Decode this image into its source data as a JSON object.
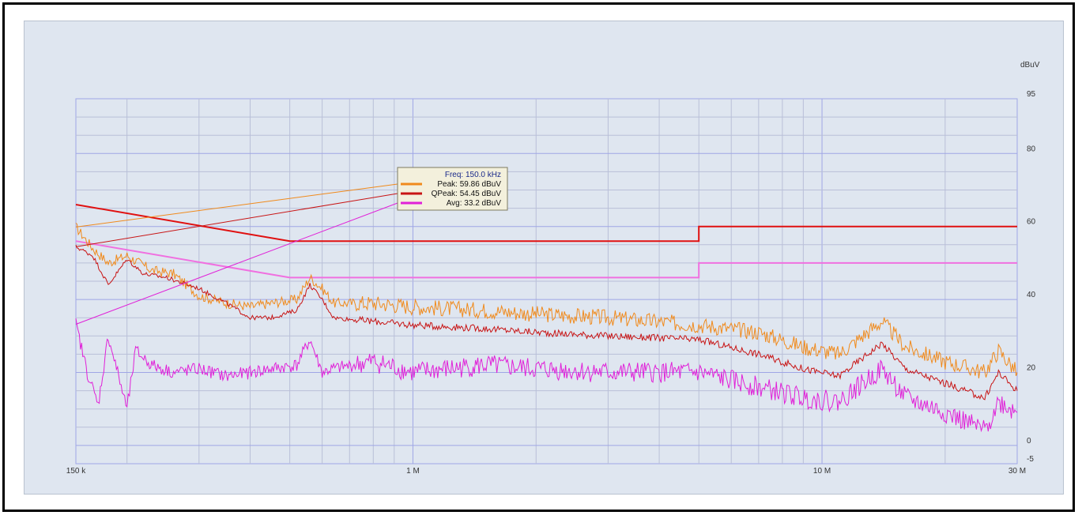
{
  "colors": {
    "background": "#dfe6f0",
    "grid": "#9fa6e6",
    "gridMinor": "#b9bfd8",
    "peak": "#f08a1c",
    "qpeak": "#c81414",
    "avg": "#e020d8",
    "limitQP": "#e01010",
    "limitAvg": "#f070e0"
  },
  "chart_data": {
    "type": "line",
    "xscale": "log",
    "xlim": [
      150000,
      30000000
    ],
    "ylim": [
      -5,
      95
    ],
    "yunit_label": "dBuV",
    "x_ticks": [
      {
        "value": 150000,
        "label": "150 k"
      },
      {
        "value": 1000000,
        "label": "1 M"
      },
      {
        "value": 10000000,
        "label": "10 M"
      },
      {
        "value": 30000000,
        "label": "30 M"
      }
    ],
    "y_ticks": [
      {
        "value": 95,
        "label": "95"
      },
      {
        "value": 80,
        "label": "80"
      },
      {
        "value": 60,
        "label": "60"
      },
      {
        "value": 40,
        "label": "40"
      },
      {
        "value": 20,
        "label": "20"
      },
      {
        "value": 0,
        "label": "0"
      },
      {
        "value": -5,
        "label": "-5"
      }
    ],
    "grid": true,
    "limits": [
      {
        "id": "qp_limit",
        "points": [
          [
            150000,
            66
          ],
          [
            500000,
            56
          ],
          [
            5000000,
            56
          ],
          [
            5000000,
            60
          ],
          [
            30000000,
            60
          ]
        ]
      },
      {
        "id": "avg_limit",
        "points": [
          [
            150000,
            56
          ],
          [
            500000,
            46
          ],
          [
            5000000,
            46
          ],
          [
            5000000,
            50
          ],
          [
            30000000,
            50
          ]
        ]
      }
    ],
    "series": [
      {
        "id": "peak",
        "name": "Peak",
        "points": [
          [
            150000,
            59.86
          ],
          [
            165000,
            54
          ],
          [
            180000,
            50
          ],
          [
            200000,
            52
          ],
          [
            230000,
            48
          ],
          [
            260000,
            47
          ],
          [
            300000,
            41
          ],
          [
            350000,
            39
          ],
          [
            400000,
            38
          ],
          [
            450000,
            39
          ],
          [
            520000,
            40
          ],
          [
            560000,
            46
          ],
          [
            600000,
            43
          ],
          [
            640000,
            39
          ],
          [
            800000,
            39
          ],
          [
            1000000,
            38
          ],
          [
            1500000,
            37
          ],
          [
            2000000,
            36
          ],
          [
            3000000,
            35
          ],
          [
            5000000,
            33
          ],
          [
            7000000,
            31
          ],
          [
            9000000,
            27
          ],
          [
            11000000,
            25
          ],
          [
            14000000,
            34
          ],
          [
            16000000,
            27
          ],
          [
            20000000,
            23
          ],
          [
            25000000,
            20
          ],
          [
            27000000,
            26
          ],
          [
            30000000,
            20
          ]
        ]
      },
      {
        "id": "qpeak",
        "name": "QPeak",
        "points": [
          [
            150000,
            54.45
          ],
          [
            165000,
            52
          ],
          [
            180000,
            44
          ],
          [
            200000,
            51
          ],
          [
            220000,
            47
          ],
          [
            250000,
            46
          ],
          [
            300000,
            43
          ],
          [
            350000,
            39
          ],
          [
            400000,
            35
          ],
          [
            450000,
            35
          ],
          [
            520000,
            37
          ],
          [
            560000,
            44
          ],
          [
            600000,
            40
          ],
          [
            640000,
            35
          ],
          [
            800000,
            34
          ],
          [
            1000000,
            33
          ],
          [
            1500000,
            32
          ],
          [
            2000000,
            31
          ],
          [
            3000000,
            30
          ],
          [
            5000000,
            29
          ],
          [
            7000000,
            25
          ],
          [
            9000000,
            21
          ],
          [
            11000000,
            19
          ],
          [
            14000000,
            28
          ],
          [
            16000000,
            21
          ],
          [
            20000000,
            17
          ],
          [
            25000000,
            13
          ],
          [
            27000000,
            20
          ],
          [
            30000000,
            15
          ]
        ]
      },
      {
        "id": "avg",
        "name": "Avg",
        "points": [
          [
            150000,
            33.2
          ],
          [
            160000,
            20
          ],
          [
            170000,
            11
          ],
          [
            180000,
            30
          ],
          [
            200000,
            10
          ],
          [
            210000,
            26
          ],
          [
            230000,
            22
          ],
          [
            260000,
            20
          ],
          [
            300000,
            21
          ],
          [
            350000,
            19
          ],
          [
            400000,
            20
          ],
          [
            450000,
            21
          ],
          [
            520000,
            22
          ],
          [
            560000,
            29
          ],
          [
            600000,
            20
          ],
          [
            640000,
            21
          ],
          [
            800000,
            23
          ],
          [
            1000000,
            20
          ],
          [
            1500000,
            22
          ],
          [
            2000000,
            21
          ],
          [
            3000000,
            20
          ],
          [
            5000000,
            20
          ],
          [
            7000000,
            16
          ],
          [
            9000000,
            13
          ],
          [
            11000000,
            12
          ],
          [
            14000000,
            21
          ],
          [
            16000000,
            13
          ],
          [
            20000000,
            9
          ],
          [
            25000000,
            4
          ],
          [
            27000000,
            12
          ],
          [
            30000000,
            9
          ]
        ]
      }
    ],
    "marker_readout": {
      "freq": "Freq: 150.0 kHz",
      "peak": "Peak: 59.86 dBuV",
      "qpeak": "QPeak: 54.45 dBuV",
      "avg": "Avg: 33.2 dBuV"
    }
  }
}
